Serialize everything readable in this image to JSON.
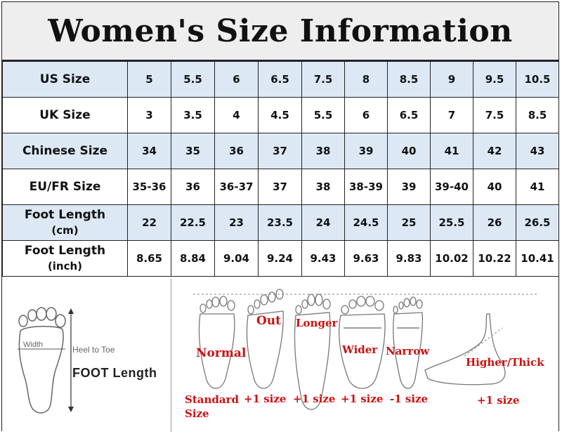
{
  "title": "Women's  Size Information",
  "table": {
    "rows": [
      {
        "label": "US Size",
        "sub": "",
        "values": [
          "5",
          "5.5",
          "6",
          "6.5",
          "7.5",
          "8",
          "8.5",
          "9",
          "9.5",
          "10.5"
        ]
      },
      {
        "label": "UK Size",
        "sub": "",
        "values": [
          "3",
          "3.5",
          "4",
          "4.5",
          "5.5",
          "6",
          "6.5",
          "7",
          "7.5",
          "8.5"
        ]
      },
      {
        "label": "Chinese Size",
        "sub": "",
        "values": [
          "34",
          "35",
          "36",
          "37",
          "38",
          "39",
          "40",
          "41",
          "42",
          "43"
        ]
      },
      {
        "label": "EU/FR Size",
        "sub": "",
        "values": [
          "35-36",
          "36",
          "36-37",
          "37",
          "38",
          "38-39",
          "39",
          "39-40",
          "40",
          "41"
        ]
      },
      {
        "label": "Foot Length",
        "sub": "(cm)",
        "values": [
          "22",
          "22.5",
          "23",
          "23.5",
          "24",
          "24.5",
          "25",
          "25.5",
          "26",
          "26.5"
        ]
      },
      {
        "label": "Foot Length",
        "sub": "(inch)",
        "values": [
          "8.65",
          "8.84",
          "9.04",
          "9.24",
          "9.43",
          "9.63",
          "9.83",
          "10.02",
          "10.22",
          "10.41"
        ]
      }
    ]
  },
  "measure": {
    "width_label": "Width",
    "heel_to_toe": "Heel to Toe",
    "foot_length": "FOOT Length"
  },
  "foot_types": [
    {
      "name": "Normal",
      "advice": "Standard Size"
    },
    {
      "name": "Out",
      "advice": "+1 size"
    },
    {
      "name": "Longer",
      "advice": "+1 size"
    },
    {
      "name": "Wider",
      "advice": "+1 size"
    },
    {
      "name": "Narrow",
      "advice": "-1 size"
    },
    {
      "name": "Higher/Thick",
      "advice": "+1 size"
    }
  ],
  "colors": {
    "label_red": "#cc1111",
    "row_blue": "#dce9f5"
  }
}
